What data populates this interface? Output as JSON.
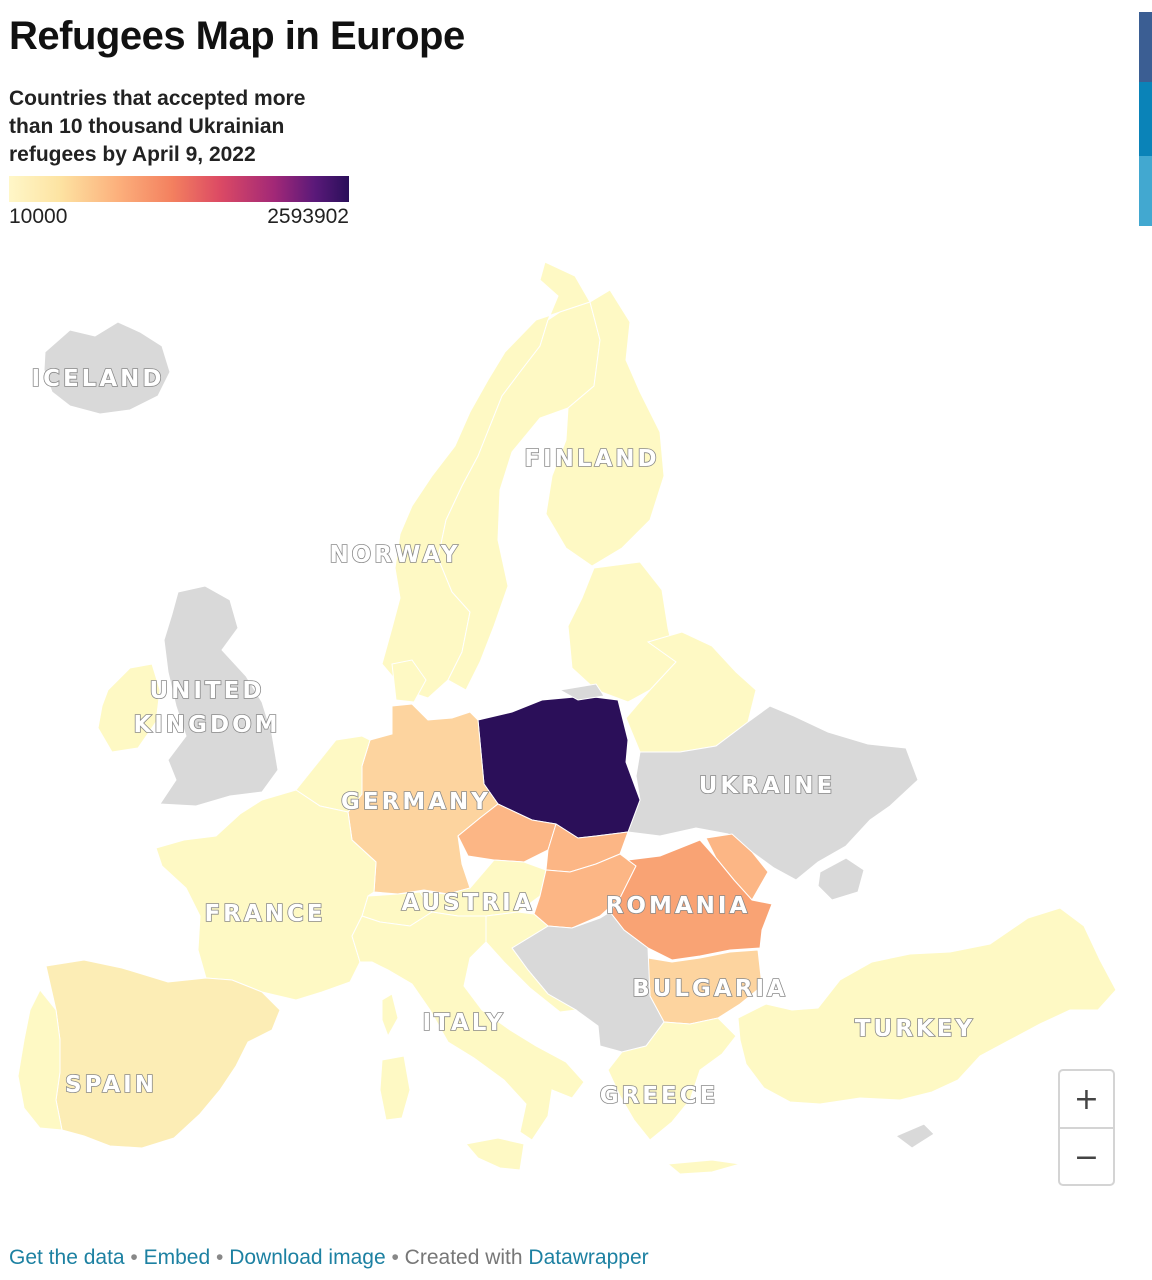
{
  "title": "Refugees Map in Europe",
  "subtitle": "Countries that accepted more than 10 thousand Ukrainian refugees by April 9, 2022",
  "legend": {
    "min_label": "10000",
    "max_label": "2593902",
    "colors": [
      "#fff7c8",
      "#fde3a2",
      "#fcb07c",
      "#f3805f",
      "#dc4a64",
      "#a22877",
      "#5a1979",
      "#2a0f5a"
    ]
  },
  "edge_tab_colors": [
    "#3b5e93",
    "#0a83b8",
    "#42a8d0"
  ],
  "colors": {
    "no_data": "#d9d9d9",
    "light": "#fef9c4",
    "pale": "#fcedb5",
    "medium": "#fdd49f",
    "orange": "#fcb685",
    "romania": "#f9a374",
    "poland": "#2b0f59",
    "sea": "#ffffff"
  },
  "map_labels": {
    "iceland": "ICELAND",
    "finland": "FINLAND",
    "norway": "NORWAY",
    "uk_line1": "UNITED",
    "uk_line2": "KINGDOM",
    "germany": "GERMANY",
    "ukraine": "UKRAINE",
    "france": "FRANCE",
    "austria": "AUSTRIA",
    "romania": "ROMANIA",
    "bulgaria": "BULGARIA",
    "italy": "ITALY",
    "turkey": "TURKEY",
    "spain": "SPAIN",
    "greece": "GREECE"
  },
  "zoom": {
    "in": "+",
    "out": "−"
  },
  "footer": {
    "get_data": "Get the data",
    "embed": "Embed",
    "download": "Download image",
    "created_with": "Created with",
    "datawrapper": "Datawrapper",
    "separator": " • "
  }
}
